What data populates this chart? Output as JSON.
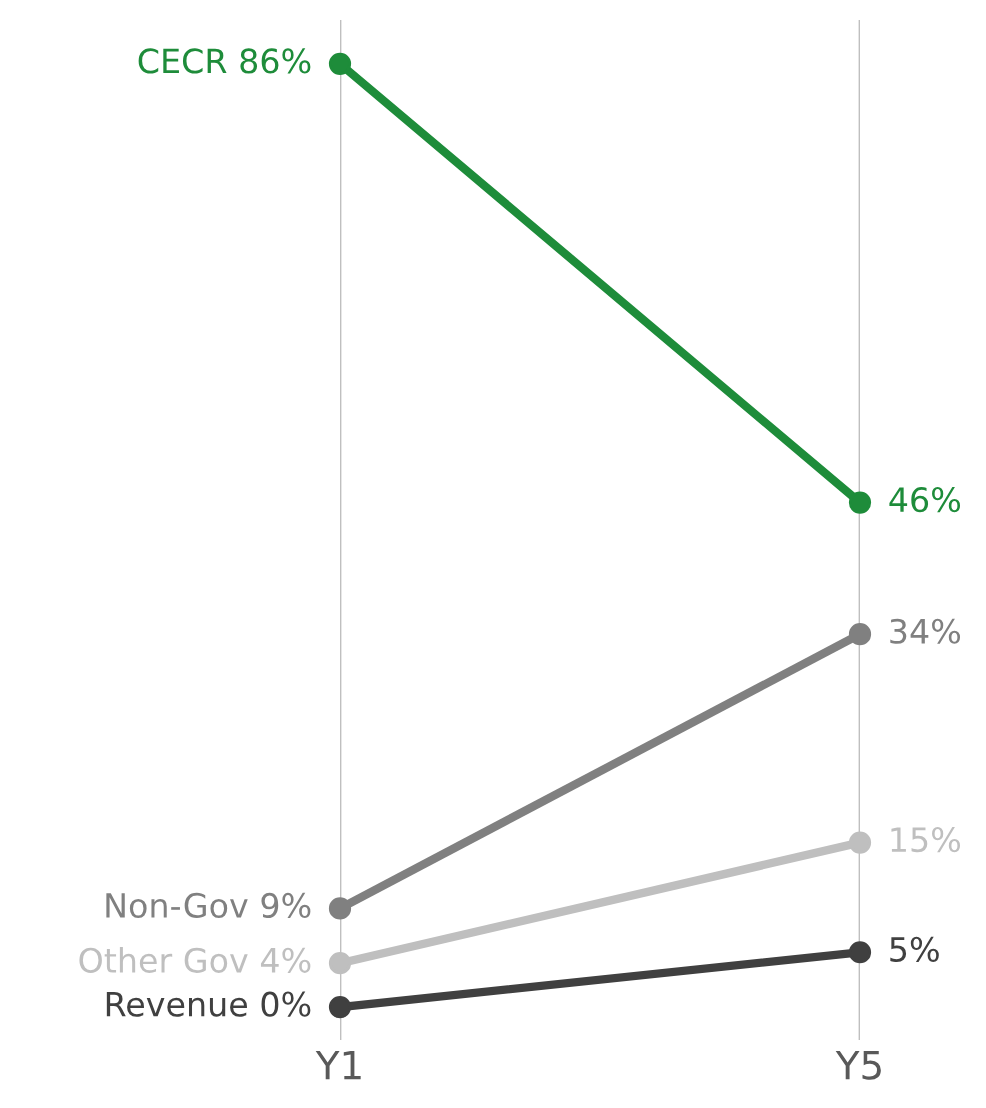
{
  "chart_data": {
    "type": "line",
    "categories": [
      "Y1",
      "Y5"
    ],
    "series": [
      {
        "color": "#1e8c3a",
        "values": [
          86,
          46
        ],
        "value_labels": [
          "CECR 86%",
          "46%"
        ]
      },
      {
        "color": "#808080",
        "values": [
          9,
          34
        ],
        "value_labels": [
          "Non-Gov 9%",
          "34%"
        ]
      },
      {
        "color": "#bfbfbf",
        "values": [
          4,
          15
        ],
        "value_labels": [
          "Other Gov 4%",
          "15%"
        ]
      },
      {
        "color": "#404040",
        "values": [
          0,
          5
        ],
        "value_labels": [
          "Revenue 0%",
          "5%"
        ]
      }
    ],
    "ylim": [
      -3,
      90
    ],
    "grid": "x",
    "tick_labels": "x",
    "marker": "circle",
    "line_style": "solid",
    "legend": false
  }
}
